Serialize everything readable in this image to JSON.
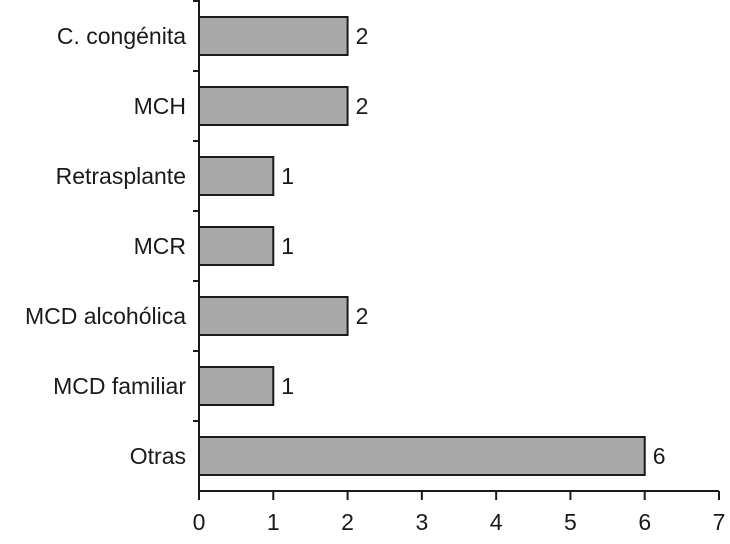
{
  "chart_data": {
    "type": "bar",
    "orientation": "horizontal",
    "categories": [
      "C. congénita",
      "MCH",
      "Retrasplante",
      "MCR",
      "MCD alcohólica",
      "MCD familiar",
      "Otras"
    ],
    "values": [
      2,
      2,
      1,
      1,
      2,
      1,
      6
    ],
    "color": "#a9a9a9",
    "xlim": [
      0,
      7
    ],
    "xticks": [
      0,
      1,
      2,
      3,
      4,
      5,
      6,
      7
    ]
  }
}
